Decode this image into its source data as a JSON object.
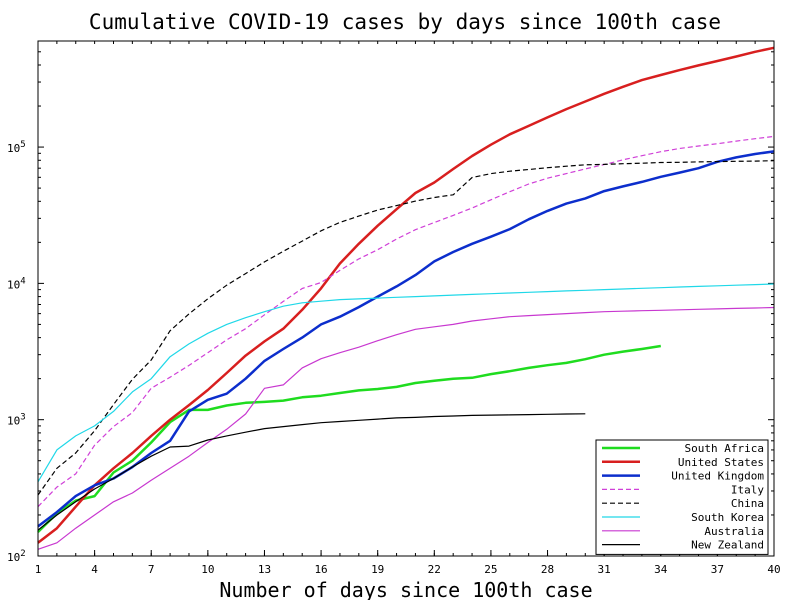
{
  "chart_data": {
    "type": "line",
    "title": "Cumulative COVID-19 cases by days since 100th case",
    "xlabel": "Number of days since 100th case",
    "ylabel": "",
    "xlim": [
      1,
      40
    ],
    "ylim": [
      100,
      600000
    ],
    "y_scale": "log",
    "x_ticks": [
      1,
      4,
      7,
      10,
      13,
      16,
      19,
      22,
      25,
      28,
      31,
      34,
      37,
      40
    ],
    "y_ticks": [
      {
        "value": 100,
        "label": "10",
        "exp": "2"
      },
      {
        "value": 1000,
        "label": "10",
        "exp": "3"
      },
      {
        "value": 10000,
        "label": "10",
        "exp": "4"
      },
      {
        "value": 100000,
        "label": "10",
        "exp": "5"
      }
    ],
    "grid": false,
    "legend_position": "bottom-right",
    "series": [
      {
        "name": "South Africa",
        "color": "#1fdc1f",
        "dash": "solid",
        "width": 2.5,
        "points": [
          [
            1,
            150
          ],
          [
            2,
            205
          ],
          [
            3,
            255
          ],
          [
            4,
            275
          ],
          [
            5,
            410
          ],
          [
            6,
            500
          ],
          [
            7,
            680
          ],
          [
            8,
            960
          ],
          [
            9,
            1180
          ],
          [
            10,
            1180
          ],
          [
            11,
            1270
          ],
          [
            12,
            1330
          ],
          [
            13,
            1350
          ],
          [
            14,
            1380
          ],
          [
            15,
            1460
          ],
          [
            16,
            1500
          ],
          [
            17,
            1570
          ],
          [
            18,
            1640
          ],
          [
            19,
            1680
          ],
          [
            20,
            1740
          ],
          [
            21,
            1860
          ],
          [
            22,
            1930
          ],
          [
            23,
            2000
          ],
          [
            24,
            2030
          ],
          [
            25,
            2160
          ],
          [
            26,
            2270
          ],
          [
            27,
            2400
          ],
          [
            28,
            2510
          ],
          [
            29,
            2610
          ],
          [
            30,
            2780
          ],
          [
            31,
            3000
          ],
          [
            32,
            3160
          ],
          [
            33,
            3300
          ],
          [
            34,
            3470
          ]
        ]
      },
      {
        "name": "United States",
        "color": "#d81f1f",
        "dash": "solid",
        "width": 2.5,
        "points": [
          [
            1,
            125
          ],
          [
            2,
            160
          ],
          [
            3,
            230
          ],
          [
            4,
            330
          ],
          [
            5,
            440
          ],
          [
            6,
            570
          ],
          [
            7,
            760
          ],
          [
            8,
            1000
          ],
          [
            9,
            1280
          ],
          [
            10,
            1650
          ],
          [
            11,
            2200
          ],
          [
            12,
            2950
          ],
          [
            13,
            3750
          ],
          [
            14,
            4650
          ],
          [
            15,
            6400
          ],
          [
            16,
            9200
          ],
          [
            17,
            14000
          ],
          [
            18,
            19500
          ],
          [
            19,
            26500
          ],
          [
            20,
            35000
          ],
          [
            21,
            46000
          ],
          [
            22,
            55000
          ],
          [
            23,
            69000
          ],
          [
            24,
            86000
          ],
          [
            25,
            104000
          ],
          [
            26,
            124000
          ],
          [
            27,
            143000
          ],
          [
            28,
            165000
          ],
          [
            29,
            190000
          ],
          [
            30,
            216000
          ],
          [
            31,
            246000
          ],
          [
            32,
            277000
          ],
          [
            33,
            310000
          ],
          [
            34,
            338000
          ],
          [
            35,
            367000
          ],
          [
            36,
            397000
          ],
          [
            37,
            428000
          ],
          [
            38,
            462000
          ],
          [
            39,
            500000
          ],
          [
            40,
            535000
          ]
        ]
      },
      {
        "name": "United Kingdom",
        "color": "#0c2ecc",
        "dash": "solid",
        "width": 2.5,
        "points": [
          [
            1,
            165
          ],
          [
            2,
            210
          ],
          [
            3,
            275
          ],
          [
            4,
            330
          ],
          [
            5,
            370
          ],
          [
            6,
            450
          ],
          [
            7,
            570
          ],
          [
            8,
            700
          ],
          [
            9,
            1150
          ],
          [
            10,
            1400
          ],
          [
            11,
            1550
          ],
          [
            12,
            2000
          ],
          [
            13,
            2700
          ],
          [
            14,
            3300
          ],
          [
            15,
            4000
          ],
          [
            16,
            5000
          ],
          [
            17,
            5700
          ],
          [
            18,
            6700
          ],
          [
            19,
            8000
          ],
          [
            20,
            9500
          ],
          [
            21,
            11500
          ],
          [
            22,
            14500
          ],
          [
            23,
            17000
          ],
          [
            24,
            19500
          ],
          [
            25,
            22000
          ],
          [
            26,
            25000
          ],
          [
            27,
            29500
          ],
          [
            28,
            34000
          ],
          [
            29,
            38500
          ],
          [
            30,
            42000
          ],
          [
            31,
            47500
          ],
          [
            32,
            51500
          ],
          [
            33,
            55500
          ],
          [
            34,
            60500
          ],
          [
            35,
            65000
          ],
          [
            36,
            70000
          ],
          [
            37,
            78000
          ],
          [
            38,
            84000
          ],
          [
            39,
            89000
          ],
          [
            40,
            93000
          ]
        ]
      },
      {
        "name": "Italy",
        "color": "#d040d8",
        "dash": "dashed",
        "width": 1.2,
        "points": [
          [
            1,
            230
          ],
          [
            2,
            320
          ],
          [
            3,
            400
          ],
          [
            4,
            650
          ],
          [
            5,
            890
          ],
          [
            6,
            1130
          ],
          [
            7,
            1700
          ],
          [
            8,
            2050
          ],
          [
            9,
            2500
          ],
          [
            10,
            3100
          ],
          [
            11,
            3850
          ],
          [
            12,
            4650
          ],
          [
            13,
            5880
          ],
          [
            14,
            7380
          ],
          [
            15,
            9170
          ],
          [
            16,
            10150
          ],
          [
            17,
            12460
          ],
          [
            18,
            15110
          ],
          [
            19,
            17660
          ],
          [
            20,
            21160
          ],
          [
            21,
            24750
          ],
          [
            22,
            27980
          ],
          [
            23,
            31510
          ],
          [
            24,
            35710
          ],
          [
            25,
            41040
          ],
          [
            26,
            47020
          ],
          [
            27,
            53580
          ],
          [
            28,
            59140
          ],
          [
            29,
            63930
          ],
          [
            30,
            69180
          ],
          [
            31,
            74390
          ],
          [
            32,
            80590
          ],
          [
            33,
            86500
          ],
          [
            34,
            92470
          ],
          [
            35,
            97690
          ],
          [
            36,
            101740
          ],
          [
            37,
            105790
          ],
          [
            38,
            110570
          ],
          [
            39,
            115240
          ],
          [
            40,
            119830
          ]
        ]
      },
      {
        "name": "China",
        "color": "#000000",
        "dash": "dashed",
        "width": 1.2,
        "points": [
          [
            1,
            280
          ],
          [
            2,
            440
          ],
          [
            3,
            570
          ],
          [
            4,
            830
          ],
          [
            5,
            1290
          ],
          [
            6,
            1980
          ],
          [
            7,
            2740
          ],
          [
            8,
            4500
          ],
          [
            9,
            5970
          ],
          [
            10,
            7710
          ],
          [
            11,
            9690
          ],
          [
            12,
            11790
          ],
          [
            13,
            14380
          ],
          [
            14,
            17200
          ],
          [
            15,
            20440
          ],
          [
            16,
            24320
          ],
          [
            17,
            28020
          ],
          [
            18,
            31160
          ],
          [
            19,
            34540
          ],
          [
            20,
            37200
          ],
          [
            21,
            40170
          ],
          [
            22,
            42630
          ],
          [
            23,
            44650
          ],
          [
            24,
            59800
          ],
          [
            25,
            63850
          ],
          [
            26,
            66490
          ],
          [
            27,
            68500
          ],
          [
            28,
            70550
          ],
          [
            29,
            72440
          ],
          [
            30,
            74180
          ],
          [
            31,
            74580
          ],
          [
            32,
            75460
          ],
          [
            33,
            76140
          ],
          [
            34,
            76990
          ],
          [
            35,
            77260
          ],
          [
            36,
            77780
          ],
          [
            37,
            78190
          ],
          [
            38,
            78630
          ],
          [
            39,
            78960
          ],
          [
            40,
            79390
          ]
        ]
      },
      {
        "name": "South Korea",
        "color": "#20d8e8",
        "dash": "solid",
        "width": 1.2,
        "points": [
          [
            1,
            350
          ],
          [
            2,
            600
          ],
          [
            3,
            760
          ],
          [
            4,
            900
          ],
          [
            5,
            1150
          ],
          [
            6,
            1600
          ],
          [
            7,
            2000
          ],
          [
            8,
            2900
          ],
          [
            9,
            3600
          ],
          [
            10,
            4300
          ],
          [
            11,
            5000
          ],
          [
            12,
            5600
          ],
          [
            13,
            6200
          ],
          [
            14,
            6800
          ],
          [
            15,
            7200
          ],
          [
            16,
            7400
          ],
          [
            17,
            7600
          ],
          [
            18,
            7700
          ],
          [
            19,
            7800
          ],
          [
            20,
            7900
          ],
          [
            21,
            8000
          ],
          [
            22,
            8100
          ],
          [
            23,
            8200
          ],
          [
            24,
            8300
          ],
          [
            25,
            8400
          ],
          [
            26,
            8500
          ],
          [
            27,
            8600
          ],
          [
            28,
            8700
          ],
          [
            29,
            8800
          ],
          [
            30,
            8900
          ],
          [
            31,
            9000
          ],
          [
            32,
            9100
          ],
          [
            33,
            9200
          ],
          [
            34,
            9300
          ],
          [
            35,
            9400
          ],
          [
            36,
            9500
          ],
          [
            37,
            9600
          ],
          [
            38,
            9700
          ],
          [
            39,
            9800
          ],
          [
            40,
            9900
          ]
        ]
      },
      {
        "name": "Australia",
        "color": "#c838d0",
        "dash": "solid",
        "width": 1.2,
        "points": [
          [
            1,
            112
          ],
          [
            2,
            125
          ],
          [
            3,
            160
          ],
          [
            4,
            200
          ],
          [
            5,
            250
          ],
          [
            6,
            290
          ],
          [
            7,
            360
          ],
          [
            8,
            440
          ],
          [
            9,
            540
          ],
          [
            10,
            680
          ],
          [
            11,
            850
          ],
          [
            12,
            1100
          ],
          [
            13,
            1700
          ],
          [
            14,
            1800
          ],
          [
            15,
            2400
          ],
          [
            16,
            2800
          ],
          [
            17,
            3100
          ],
          [
            18,
            3400
          ],
          [
            19,
            3800
          ],
          [
            20,
            4200
          ],
          [
            21,
            4600
          ],
          [
            22,
            4800
          ],
          [
            23,
            5000
          ],
          [
            24,
            5300
          ],
          [
            25,
            5500
          ],
          [
            26,
            5700
          ],
          [
            27,
            5800
          ],
          [
            28,
            5900
          ],
          [
            29,
            6000
          ],
          [
            30,
            6100
          ],
          [
            31,
            6200
          ],
          [
            32,
            6250
          ],
          [
            33,
            6300
          ],
          [
            34,
            6350
          ],
          [
            35,
            6400
          ],
          [
            36,
            6450
          ],
          [
            37,
            6500
          ],
          [
            38,
            6550
          ],
          [
            39,
            6600
          ],
          [
            40,
            6650
          ]
        ]
      },
      {
        "name": "New Zealand",
        "color": "#000000",
        "dash": "solid",
        "width": 1.2,
        "points": [
          [
            1,
            155
          ],
          [
            2,
            200
          ],
          [
            3,
            250
          ],
          [
            4,
            310
          ],
          [
            5,
            370
          ],
          [
            6,
            450
          ],
          [
            7,
            540
          ],
          [
            8,
            630
          ],
          [
            9,
            640
          ],
          [
            10,
            710
          ],
          [
            11,
            760
          ],
          [
            12,
            810
          ],
          [
            13,
            860
          ],
          [
            14,
            890
          ],
          [
            15,
            920
          ],
          [
            16,
            950
          ],
          [
            17,
            970
          ],
          [
            18,
            990
          ],
          [
            19,
            1010
          ],
          [
            20,
            1030
          ],
          [
            21,
            1040
          ],
          [
            22,
            1055
          ],
          [
            23,
            1065
          ],
          [
            24,
            1075
          ],
          [
            25,
            1080
          ],
          [
            26,
            1085
          ],
          [
            27,
            1090
          ],
          [
            28,
            1095
          ],
          [
            29,
            1100
          ],
          [
            30,
            1105
          ]
        ]
      }
    ]
  }
}
